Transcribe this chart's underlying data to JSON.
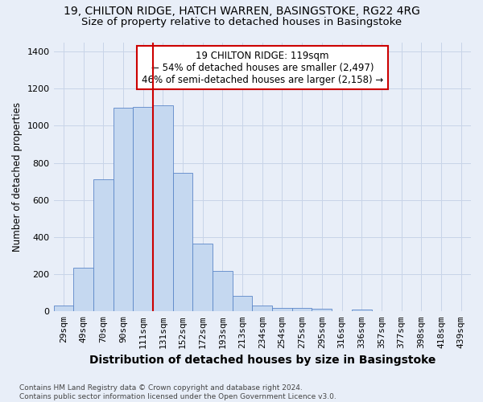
{
  "title_line1": "19, CHILTON RIDGE, HATCH WARREN, BASINGSTOKE, RG22 4RG",
  "title_line2": "Size of property relative to detached houses in Basingstoke",
  "xlabel": "Distribution of detached houses by size in Basingstoke",
  "ylabel": "Number of detached properties",
  "footnote": "Contains HM Land Registry data © Crown copyright and database right 2024.\nContains public sector information licensed under the Open Government Licence v3.0.",
  "bar_labels": [
    "29sqm",
    "49sqm",
    "70sqm",
    "90sqm",
    "111sqm",
    "131sqm",
    "152sqm",
    "172sqm",
    "193sqm",
    "213sqm",
    "234sqm",
    "254sqm",
    "275sqm",
    "295sqm",
    "316sqm",
    "336sqm",
    "357sqm",
    "377sqm",
    "398sqm",
    "418sqm",
    "439sqm"
  ],
  "bar_values": [
    30,
    235,
    710,
    1095,
    1100,
    1110,
    745,
    365,
    220,
    85,
    30,
    20,
    20,
    15,
    0,
    10,
    0,
    0,
    0,
    0,
    0
  ],
  "bar_color": "#c5d8f0",
  "bar_edge_color": "#5b87c8",
  "vline_x": 4.5,
  "vline_color": "#cc0000",
  "annotation_text": "19 CHILTON RIDGE: 119sqm\n← 54% of detached houses are smaller (2,497)\n46% of semi-detached houses are larger (2,158) →",
  "annotation_box_color": "#cc0000",
  "annotation_box_facecolor": "white",
  "ylim": [
    0,
    1450
  ],
  "yticks": [
    0,
    200,
    400,
    600,
    800,
    1000,
    1200,
    1400
  ],
  "grid_color": "#c8d4e8",
  "background_color": "#e8eef8",
  "title_fontsize": 10,
  "subtitle_fontsize": 9.5,
  "xlabel_fontsize": 10,
  "ylabel_fontsize": 8.5,
  "tick_fontsize": 8,
  "annotation_fontsize": 8.5,
  "footnote_fontsize": 6.5
}
